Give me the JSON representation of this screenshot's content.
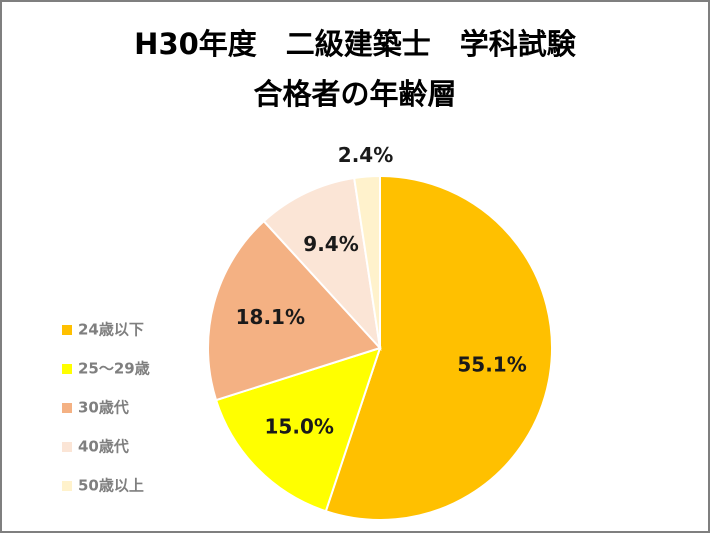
{
  "chart_data": {
    "type": "pie",
    "title_lines": [
      "H30年度　二級建築士　学科試験",
      "合格者の年齢層"
    ],
    "categories": [
      "24歳以下",
      "25〜29歳",
      "30歳代",
      "40歳代",
      "50歳以上"
    ],
    "values": [
      55.1,
      15.0,
      18.1,
      9.4,
      2.4
    ],
    "value_labels": [
      "55.1%",
      "15.0%",
      "18.1%",
      "9.4%",
      "2.4%"
    ],
    "colors": [
      "#ffc000",
      "#ffff00",
      "#f4b183",
      "#fbe5d6",
      "#fff2cc"
    ],
    "legend": "left"
  }
}
